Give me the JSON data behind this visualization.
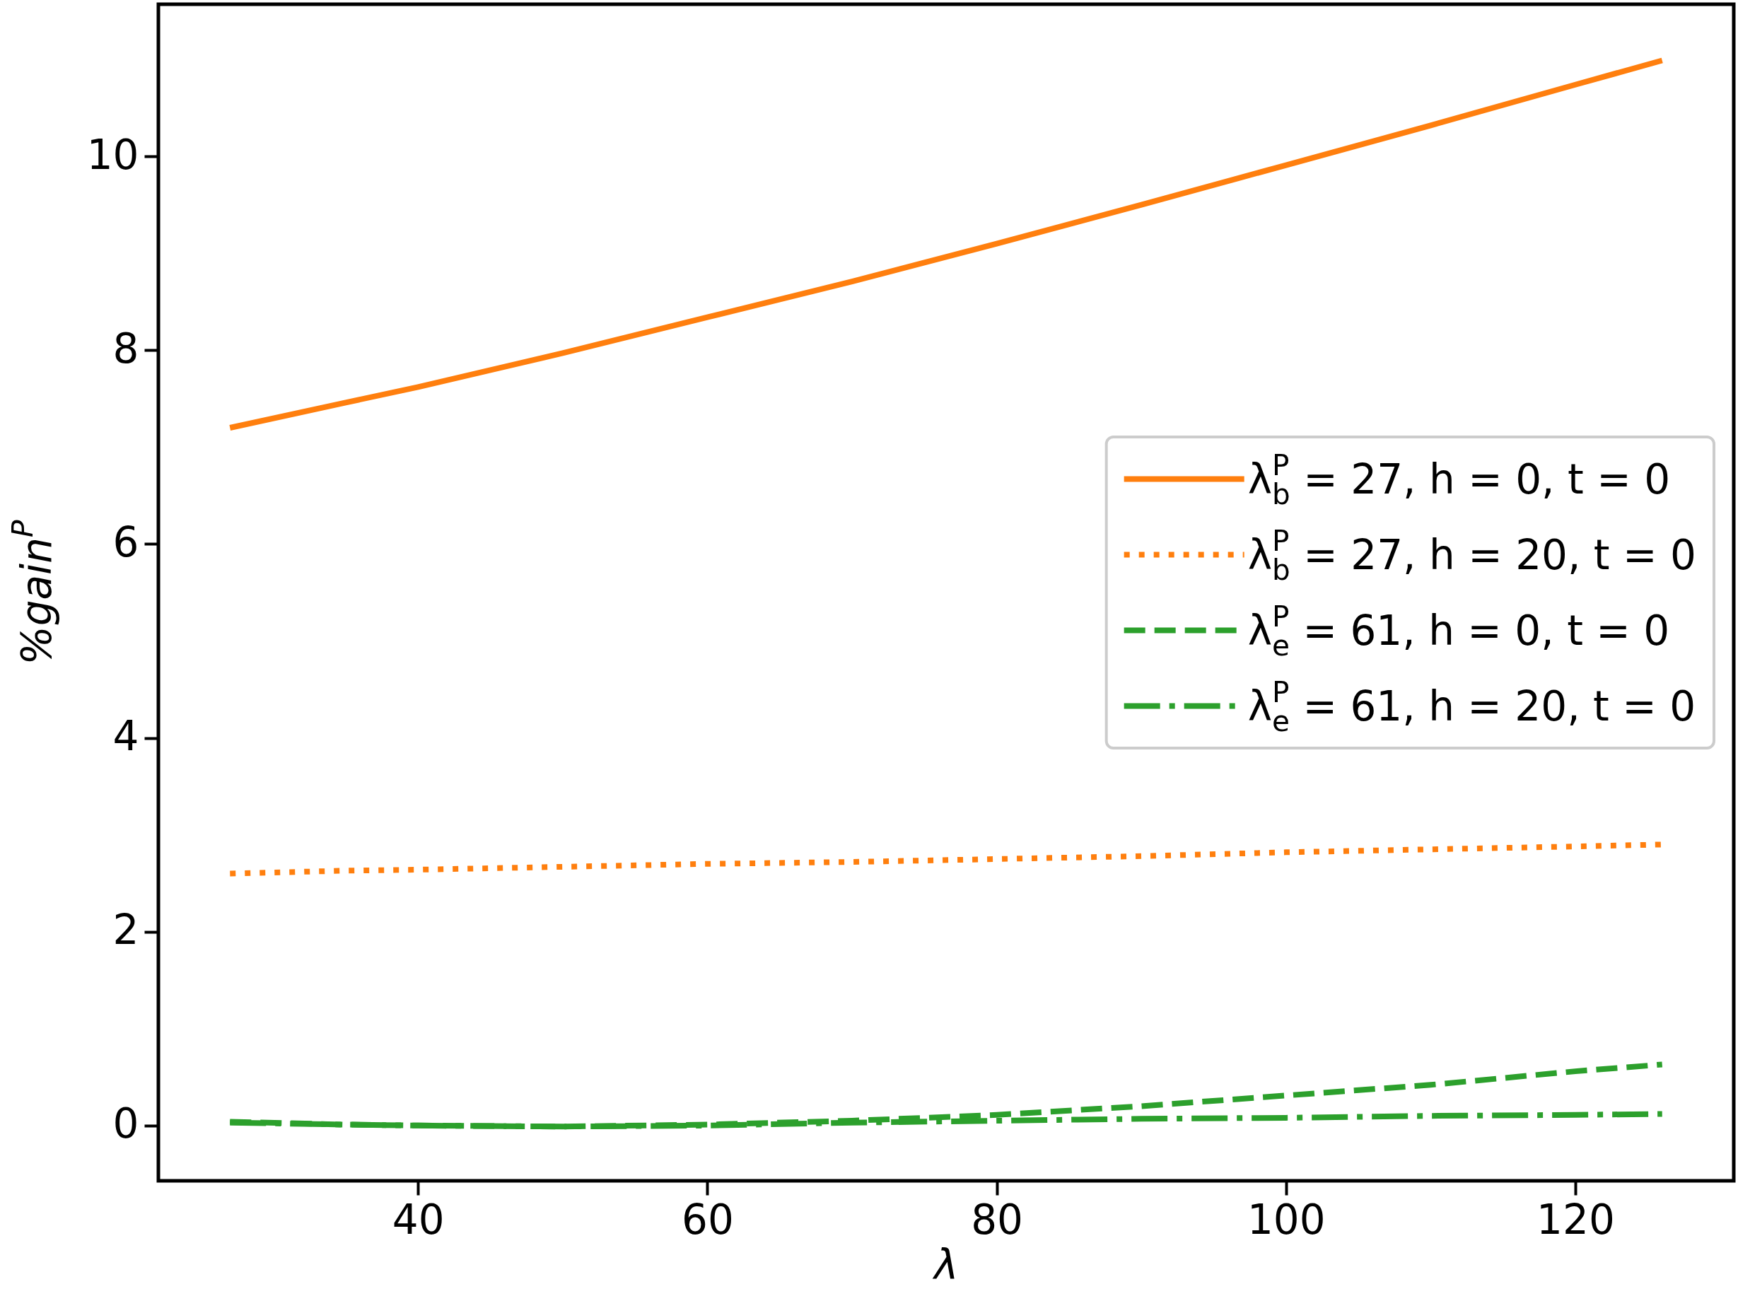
{
  "chart_data": {
    "type": "line",
    "xlabel": "λ",
    "ylabel": "%gain$^{P}$",
    "x": [
      27,
      35,
      40,
      50,
      60,
      70,
      80,
      90,
      100,
      110,
      120,
      126
    ],
    "xlim": [
      22.05,
      130.95
    ],
    "xticks": [
      40,
      60,
      80,
      100,
      120
    ],
    "ylim": [
      -0.57,
      11.57
    ],
    "yticks": [
      0,
      2,
      4,
      6,
      8,
      10
    ],
    "legend": "right",
    "series": [
      {
        "name": "λ$_{b}$$^{P}$ = 27, h = 0, t = 0",
        "color": "#ff7f0e",
        "line_style": "solid",
        "values": [
          7.2,
          7.46,
          7.62,
          7.97,
          8.34,
          8.71,
          9.1,
          9.5,
          9.91,
          10.32,
          10.74,
          10.99
        ]
      },
      {
        "name": "λ$_{b}$$^{P}$ = 27, h = 20, t = 0",
        "color": "#ff7f0e",
        "line_style": "dotted",
        "values": [
          2.6,
          2.63,
          2.64,
          2.67,
          2.7,
          2.72,
          2.75,
          2.78,
          2.82,
          2.85,
          2.88,
          2.9
        ]
      },
      {
        "name": "λ$_{e}$$^{P}$ = 61, h = 0, t = 0",
        "color": "#2ca02c",
        "line_style": "dashed",
        "values": [
          0.04,
          0.01,
          0.0,
          -0.01,
          0.01,
          0.05,
          0.11,
          0.2,
          0.31,
          0.42,
          0.56,
          0.63
        ]
      },
      {
        "name": "λ$_{e}$$^{P}$ = 61, h = 20, t = 0",
        "color": "#2ca02c",
        "line_style": "dashdot",
        "values": [
          0.03,
          0.01,
          0.0,
          -0.01,
          0.0,
          0.03,
          0.05,
          0.07,
          0.08,
          0.1,
          0.11,
          0.12
        ]
      }
    ]
  }
}
